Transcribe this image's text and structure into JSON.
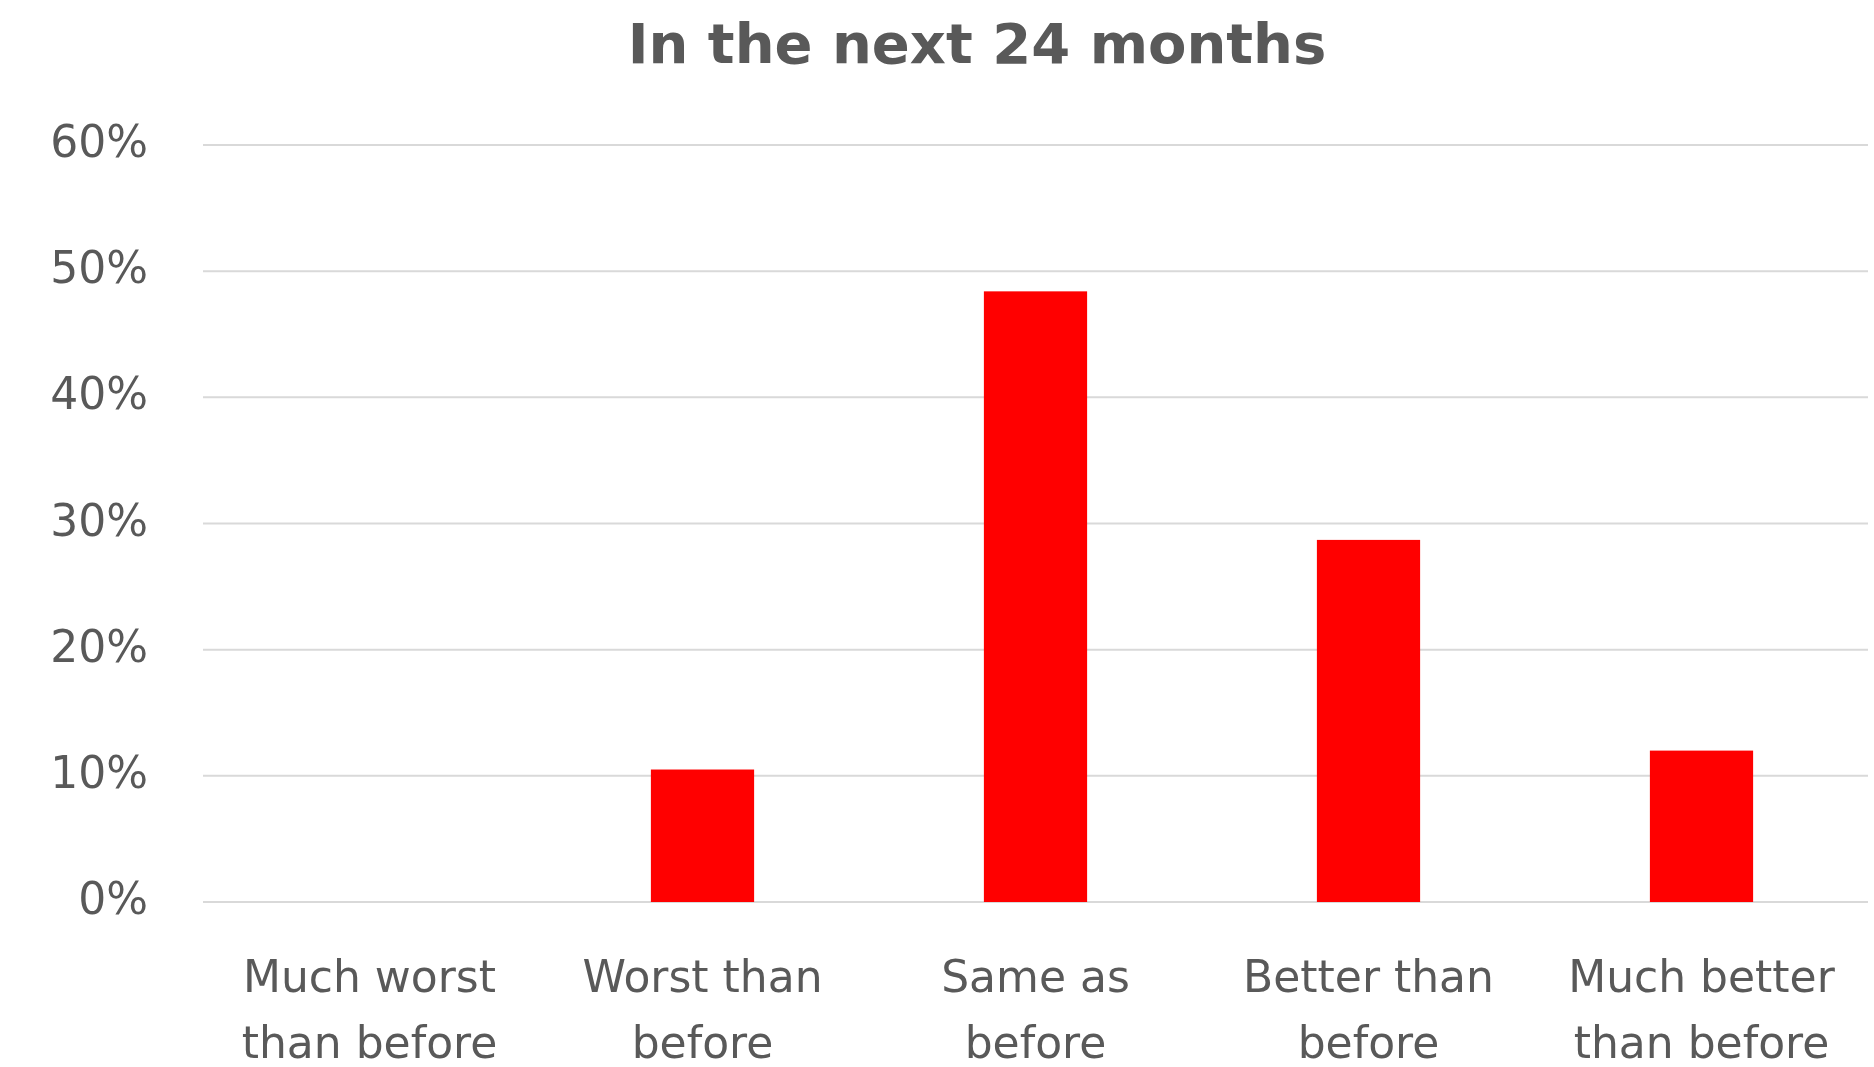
{
  "chart_data": {
    "type": "bar",
    "title": "In the next 24 months",
    "categories": [
      "Much worst than before",
      "Worst than before",
      "Same as before",
      "Better than before",
      "Much better than before"
    ],
    "values": [
      0,
      10.5,
      48.4,
      28.7,
      12.0
    ],
    "color": "#ff0000",
    "ylim": [
      0,
      60
    ],
    "yticks": [
      {
        "value": 0,
        "label": "0%"
      },
      {
        "value": 10,
        "label": "10%"
      },
      {
        "value": 20,
        "label": "20%"
      },
      {
        "value": 30,
        "label": "30%"
      },
      {
        "value": 40,
        "label": "40%"
      },
      {
        "value": 50,
        "label": "50%"
      },
      {
        "value": 60,
        "label": "60%"
      }
    ],
    "grid": "y"
  }
}
